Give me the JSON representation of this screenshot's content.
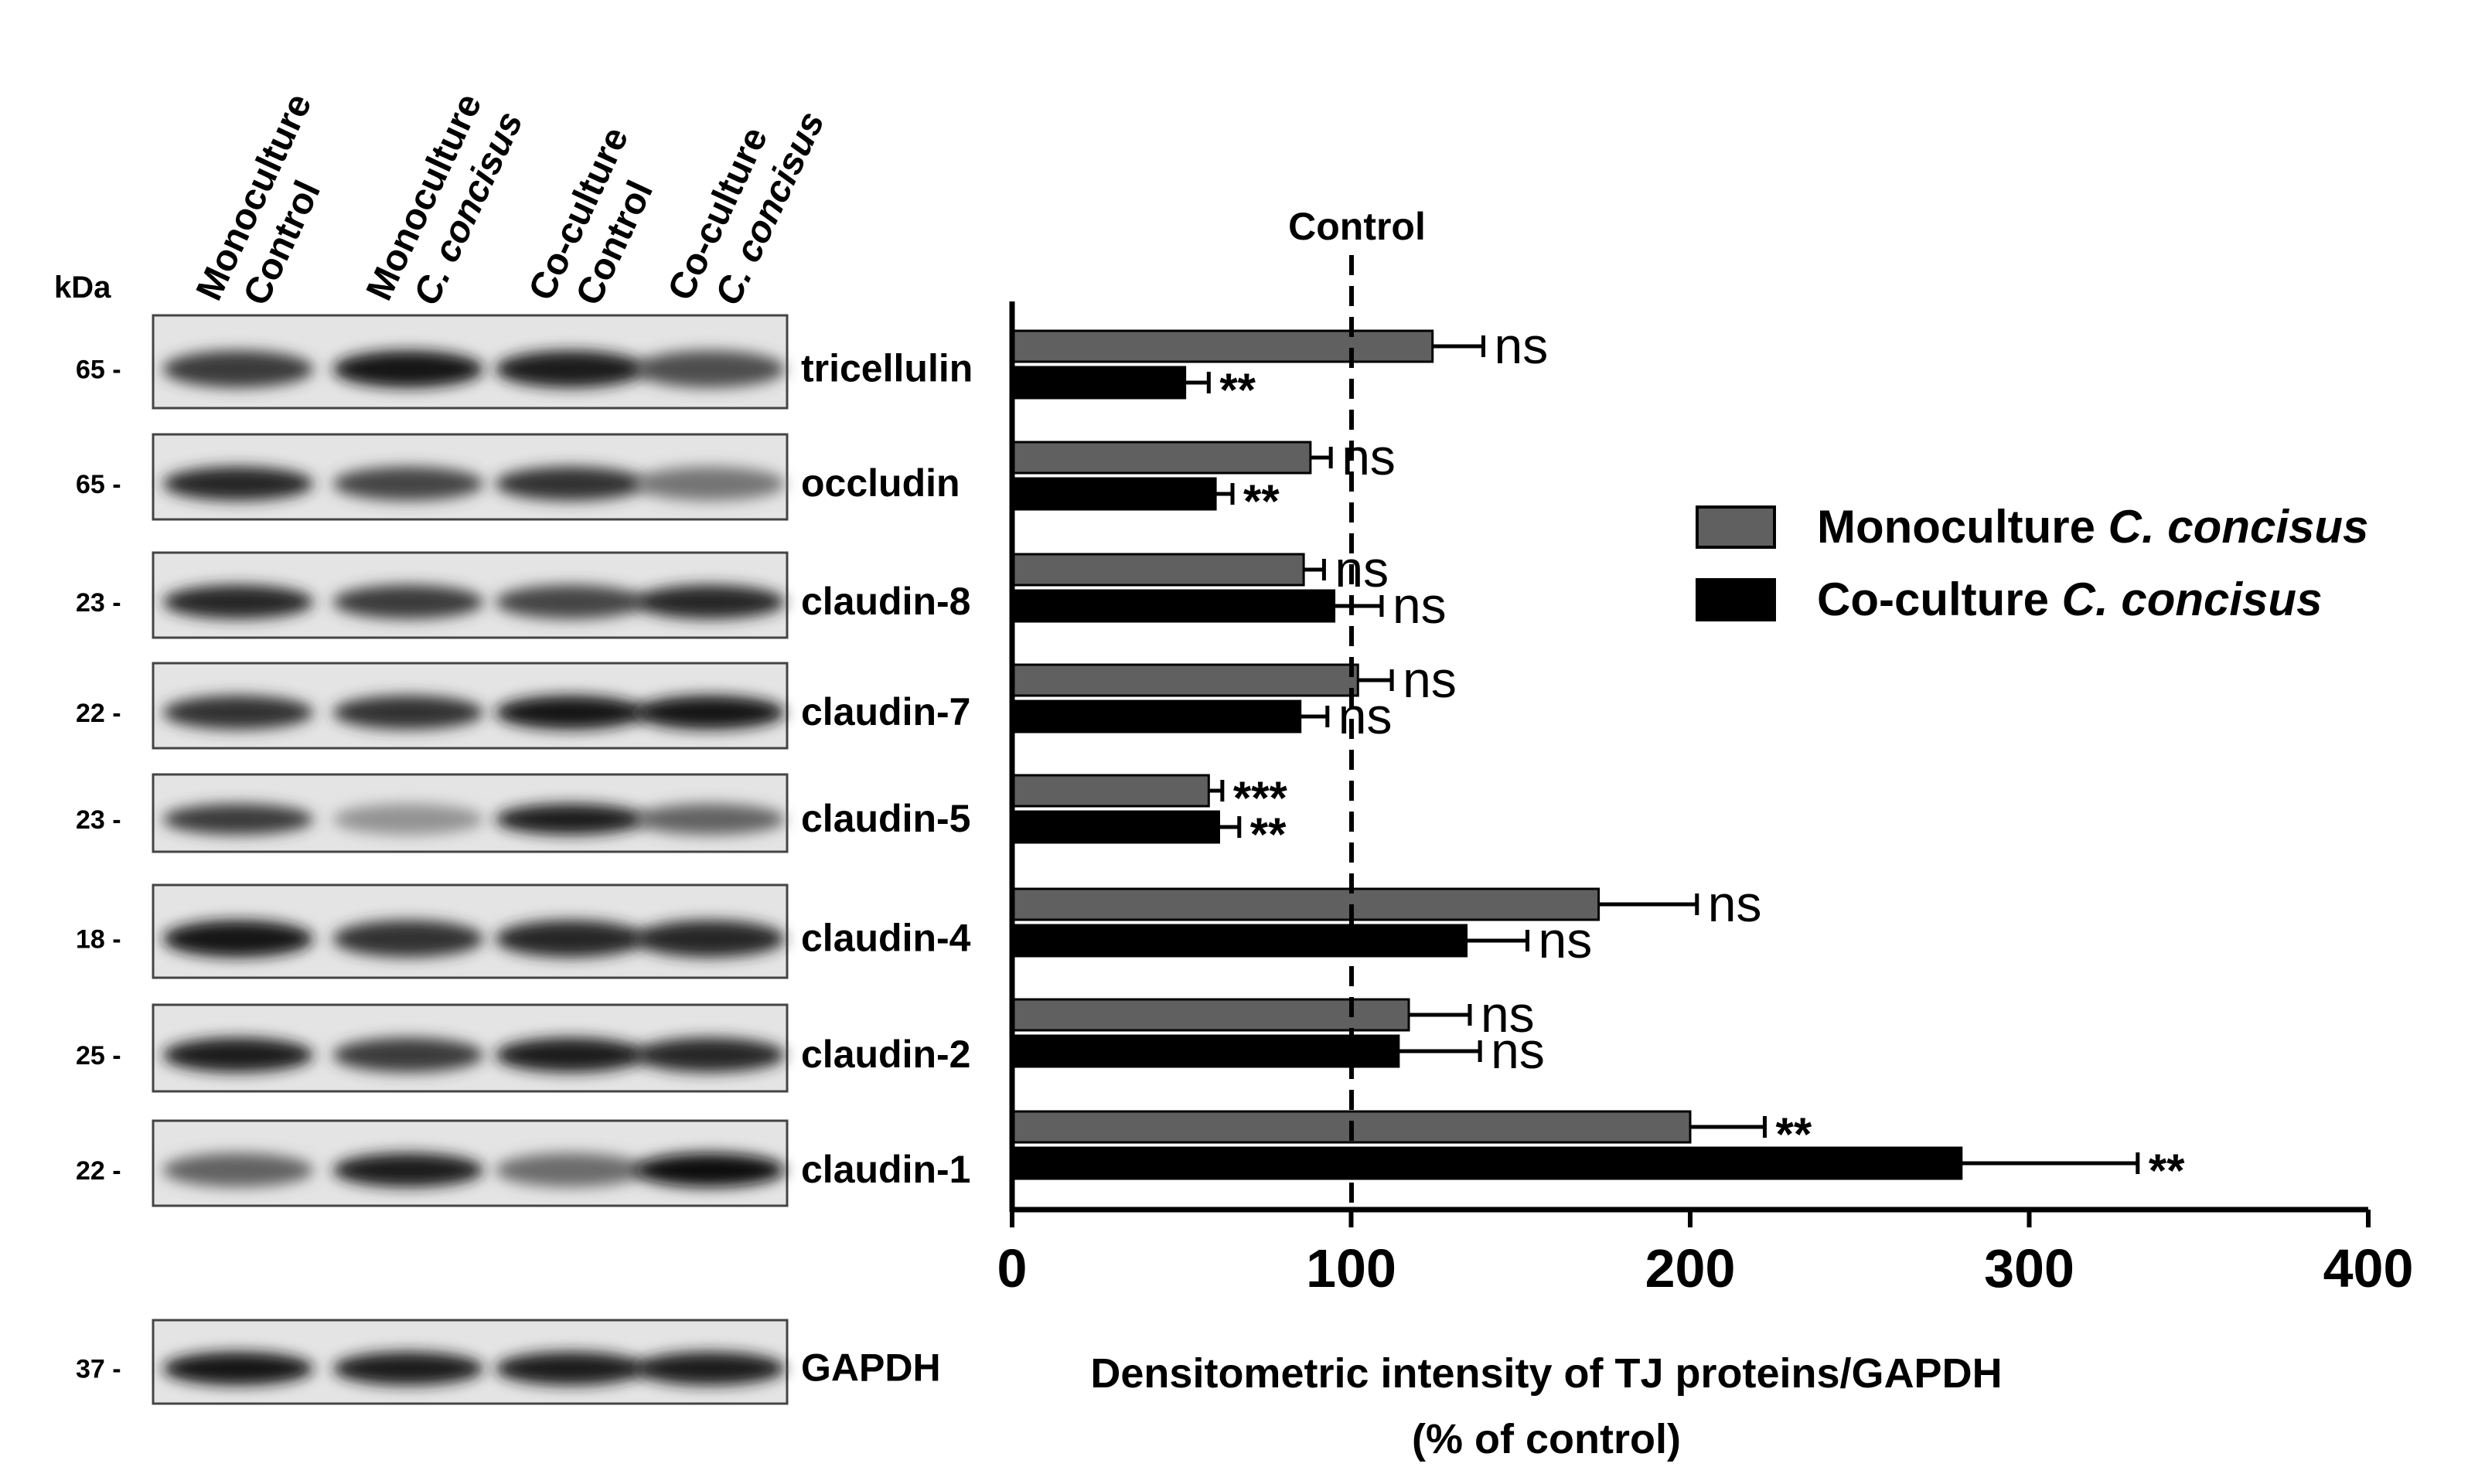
{
  "blot": {
    "kda_label": "kDa",
    "lanes": [
      {
        "line1": "Monoculture",
        "line2": "Control",
        "italic2": false
      },
      {
        "line1": "Monoculture",
        "line2": "C. concisus",
        "italic2": true
      },
      {
        "line1": "Co-culture",
        "line2": "Control",
        "italic2": false
      },
      {
        "line1": "Co-culture",
        "line2": "C. concisus",
        "italic2": true
      }
    ],
    "rows": [
      {
        "protein": "tricellulin",
        "kda": "65 -",
        "intensity": [
          0.75,
          0.95,
          0.9,
          0.65
        ]
      },
      {
        "protein": "occludin",
        "kda": "65 -",
        "intensity": [
          0.85,
          0.7,
          0.8,
          0.45
        ]
      },
      {
        "protein": "claudin-8",
        "kda": "23 -",
        "intensity": [
          0.85,
          0.75,
          0.7,
          0.85
        ]
      },
      {
        "protein": "claudin-7",
        "kda": "22 -",
        "intensity": [
          0.8,
          0.8,
          0.95,
          0.95
        ]
      },
      {
        "protein": "claudin-5",
        "kda": "23 -",
        "intensity": [
          0.75,
          0.3,
          0.9,
          0.55
        ]
      },
      {
        "protein": "claudin-4",
        "kda": "18 -",
        "intensity": [
          0.95,
          0.8,
          0.85,
          0.85
        ]
      },
      {
        "protein": "claudin-2",
        "kda": "25 -",
        "intensity": [
          0.9,
          0.75,
          0.9,
          0.85
        ]
      },
      {
        "protein": "claudin-1",
        "kda": "22 -",
        "intensity": [
          0.55,
          0.9,
          0.5,
          1.0
        ]
      }
    ],
    "loading": {
      "protein": "GAPDH",
      "kda": "37 -",
      "intensity": [
        0.95,
        0.9,
        0.9,
        0.92
      ]
    }
  },
  "chart_data": {
    "type": "bar",
    "orientation": "horizontal",
    "categories": [
      "tricellulin",
      "occludin",
      "claudin-8",
      "claudin-7",
      "claudin-5",
      "claudin-4",
      "claudin-2",
      "claudin-1"
    ],
    "series": [
      {
        "name": "Monoculture C. concisus",
        "name_plain": "Monoculture",
        "name_italic": "C. concisus",
        "color": "#606060",
        "values": [
          124,
          88,
          86,
          102,
          58,
          173,
          117,
          200
        ],
        "errors": [
          15,
          6,
          6,
          10,
          4,
          29,
          18,
          22
        ],
        "significance": [
          "ns",
          "ns",
          "ns",
          "ns",
          "***",
          "ns",
          "ns",
          "**"
        ]
      },
      {
        "name": "Co-culture C. concisus",
        "name_plain": "Co-culture",
        "name_italic": "C. concisus",
        "color": "#000000",
        "values": [
          51,
          60,
          95,
          85,
          61,
          134,
          114,
          280
        ],
        "errors": [
          7,
          5,
          14,
          8,
          6,
          18,
          24,
          52
        ],
        "significance": [
          "**",
          "**",
          "ns",
          "ns",
          "**",
          "ns",
          "ns",
          "**"
        ]
      }
    ],
    "xlim": [
      0,
      400
    ],
    "xticks": [
      "0",
      "100",
      "200",
      "300",
      "400"
    ],
    "reference_value": 100,
    "reference_label": "Control",
    "xlabel": "Densitometric intensity of TJ proteins/GAPDH",
    "xlabel_line2": "(% of control)",
    "ylabel": "",
    "legend_position": "right"
  }
}
